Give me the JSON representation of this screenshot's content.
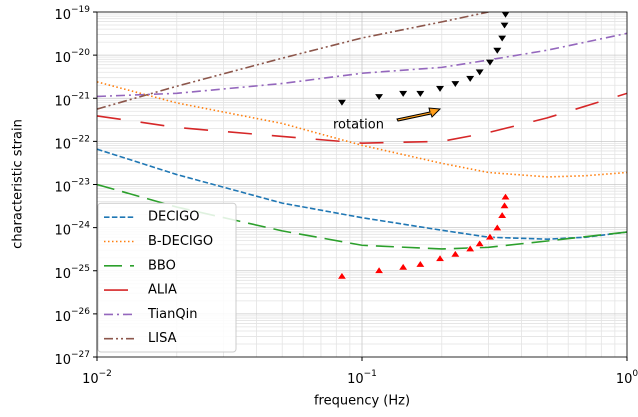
{
  "chart_data": {
    "type": "line",
    "xlabel": "frequency (Hz)",
    "ylabel": "characteristic strain",
    "xscale": "log",
    "yscale": "log",
    "xlim": [
      0.01,
      1
    ],
    "ylim": [
      1e-27,
      1e-19
    ],
    "xticks": [
      {
        "value": 0.01,
        "label": "10−2"
      },
      {
        "value": 0.1,
        "label": "10−1"
      },
      {
        "value": 1,
        "label": "100"
      }
    ],
    "yticks": [
      {
        "value": 1e-27,
        "label": "10−27"
      },
      {
        "value": 1e-26,
        "label": "10−26"
      },
      {
        "value": 1e-25,
        "label": "10−25"
      },
      {
        "value": 1e-24,
        "label": "10−24"
      },
      {
        "value": 1e-23,
        "label": "10−23"
      },
      {
        "value": 1e-22,
        "label": "10−22"
      },
      {
        "value": 1e-21,
        "label": "10−21"
      },
      {
        "value": 1e-20,
        "label": "10−20"
      },
      {
        "value": 1e-19,
        "label": "10−19"
      }
    ],
    "grid": true,
    "minor_grid": true,
    "legend": "lower left",
    "series": [
      {
        "name": "DECIGO",
        "color": "#1f77b4",
        "dash": "5.5,2.4",
        "x": [
          0.01,
          0.02,
          0.05,
          0.1,
          0.2,
          0.3,
          0.5,
          0.7,
          1
        ],
        "values": [
          6.6e-23,
          1.7e-23,
          3.7e-24,
          1.7e-24,
          8.7e-25,
          6e-25,
          5.4e-25,
          6e-25,
          7.9e-25
        ]
      },
      {
        "name": "B-DECIGO",
        "color": "#ff7f0e",
        "dash": "1.5,2.5",
        "x": [
          0.01,
          0.02,
          0.05,
          0.1,
          0.2,
          0.3,
          0.5,
          0.7,
          1
        ],
        "values": [
          2.4e-21,
          7.8e-22,
          2.6e-22,
          8.1e-23,
          3.1e-23,
          1.9e-23,
          1.5e-23,
          1.6e-23,
          1.9e-23
        ]
      },
      {
        "name": "BBO",
        "color": "#2ca02c",
        "dash": "18,8",
        "x": [
          0.01,
          0.02,
          0.05,
          0.1,
          0.2,
          0.3,
          0.5,
          1
        ],
        "values": [
          1e-23,
          3e-24,
          8.4e-25,
          3.9e-25,
          3.2e-25,
          3.5e-25,
          4.9e-25,
          7.9e-25
        ]
      },
      {
        "name": "ALIA",
        "color": "#d62728",
        "dash": "24,20",
        "x": [
          0.01,
          0.02,
          0.05,
          0.1,
          0.2,
          0.3,
          0.5,
          1
        ],
        "values": [
          3.9e-22,
          2.1e-22,
          1.3e-22,
          9.1e-23,
          1e-22,
          1.6e-22,
          3.5e-22,
          1.3e-21
        ]
      },
      {
        "name": "TianQin",
        "color": "#9467bd",
        "dash": "9,4,2,4",
        "x": [
          0.01,
          0.02,
          0.05,
          0.1,
          0.2,
          0.3,
          0.5,
          1
        ],
        "values": [
          1.1e-21,
          1.3e-21,
          2.2e-21,
          3.8e-21,
          5.2e-21,
          7.7e-21,
          1.3e-20,
          3.2e-20
        ]
      },
      {
        "name": "LISA",
        "color": "#8c564b",
        "dash": "9,3,2,3,2,3",
        "x": [
          0.01,
          0.02,
          0.05,
          0.1,
          0.2,
          0.3
        ],
        "values": [
          5.6e-22,
          1.9e-21,
          8.5e-21,
          2.5e-20,
          5.9e-20,
          1e-19
        ]
      }
    ],
    "markers": [
      {
        "color": "#000000",
        "marker": "triangle-down",
        "x": [
          0.084,
          0.116,
          0.143,
          0.166,
          0.197,
          0.225,
          0.256,
          0.278,
          0.304,
          0.324,
          0.338,
          0.345,
          0.348
        ],
        "values": [
          8.1e-22,
          1.1e-21,
          1.3e-21,
          1.3e-21,
          1.7e-21,
          2.2e-21,
          2.9e-21,
          4.1e-21,
          6.9e-21,
          1.3e-20,
          2.5e-20,
          5e-20,
          8.9e-20
        ]
      },
      {
        "color": "#ff0000",
        "marker": "triangle-up",
        "x": [
          0.084,
          0.116,
          0.143,
          0.166,
          0.197,
          0.225,
          0.256,
          0.278,
          0.304,
          0.324,
          0.338,
          0.345,
          0.348
        ],
        "values": [
          7.4e-26,
          1e-25,
          1.2e-25,
          1.4e-25,
          1.9e-25,
          2.4e-25,
          3.2e-25,
          4.2e-25,
          6e-25,
          9.8e-25,
          1.9e-24,
          3.2e-24,
          5.1e-24
        ]
      }
    ],
    "annotation": "rotation"
  }
}
